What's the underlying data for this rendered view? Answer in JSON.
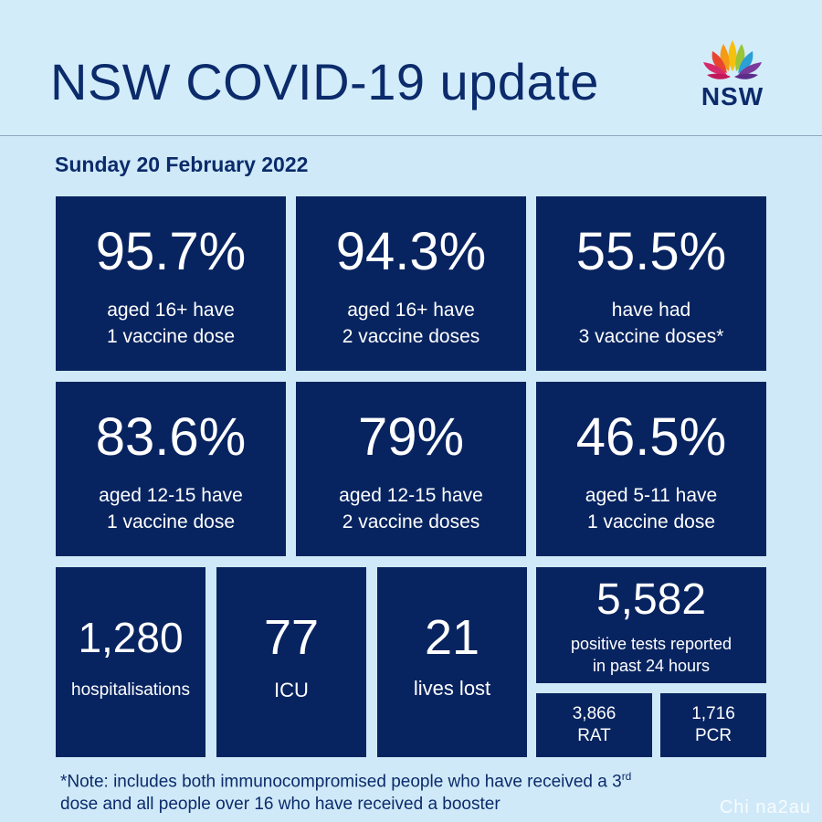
{
  "header": {
    "title": "NSW COVID-19 update",
    "logo_text": "NSW"
  },
  "date": "Sunday 20 February 2022",
  "row1": [
    {
      "value": "95.7%",
      "line1": "aged 16+ have",
      "line2": "1 vaccine dose"
    },
    {
      "value": "94.3%",
      "line1": "aged 16+ have",
      "line2": "2 vaccine doses"
    },
    {
      "value": "55.5%",
      "line1": "have had",
      "line2": "3 vaccine doses*"
    }
  ],
  "row2": [
    {
      "value": "83.6%",
      "line1": "aged 12-15 have",
      "line2": "1 vaccine dose"
    },
    {
      "value": "79%",
      "line1": "aged 12-15 have",
      "line2": "2 vaccine doses"
    },
    {
      "value": "46.5%",
      "line1": "aged 5-11 have",
      "line2": "1 vaccine dose"
    }
  ],
  "row3": {
    "hospitalisations": {
      "value": "1,280",
      "label": "hospitalisations"
    },
    "icu": {
      "value": "77",
      "label": "ICU"
    },
    "deaths": {
      "value": "21",
      "label": "lives lost"
    },
    "positive": {
      "value": "5,582",
      "line1": "positive tests reported",
      "line2": "in past 24 hours"
    },
    "rat": {
      "value": "3,866",
      "label": "RAT"
    },
    "pcr": {
      "value": "1,716",
      "label": "PCR"
    }
  },
  "note": {
    "part1": "*Note: includes both immunocompromised  people who have received a 3",
    "sup": "rd",
    "part2": "dose and all people over 16 who have received a booster"
  },
  "watermark": "Chi na2au",
  "colors": {
    "background": "#cfe9f8",
    "tile": "#082460",
    "text": "#0b2b6b"
  }
}
